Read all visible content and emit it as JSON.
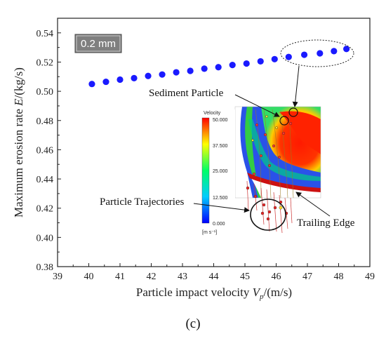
{
  "chart_data": {
    "type": "scatter",
    "xlabel_main": "Particle impact velocity ",
    "xlabel_var": "V",
    "xlabel_sub": "p",
    "xlabel_unit": "/(m/s)",
    "ylabel_main": "Maximum erosion rate ",
    "ylabel_var": "E",
    "ylabel_unit": "/(kg/s)",
    "xlim": [
      39,
      49
    ],
    "ylim": [
      0.38,
      0.55
    ],
    "x_ticks": [
      "39",
      "40",
      "41",
      "42",
      "43",
      "44",
      "45",
      "46",
      "47",
      "48",
      "49"
    ],
    "y_ticks": [
      "0.38",
      "0.40",
      "0.42",
      "0.44",
      "0.46",
      "0.48",
      "0.50",
      "0.52",
      "0.54"
    ],
    "point_color": "#1a1aff",
    "series": [
      {
        "x": [
          40.1,
          40.55,
          41.0,
          41.45,
          41.9,
          42.35,
          42.8,
          43.25,
          43.7,
          44.15,
          44.6,
          45.05,
          45.5,
          45.95,
          46.4,
          46.9,
          47.4,
          47.85,
          48.25
        ],
        "y": [
          0.505,
          0.5065,
          0.508,
          0.509,
          0.5105,
          0.5115,
          0.513,
          0.514,
          0.5155,
          0.5165,
          0.518,
          0.519,
          0.5205,
          0.522,
          0.5235,
          0.525,
          0.526,
          0.5275,
          0.529
        ]
      }
    ],
    "badge": "0.2 mm",
    "annotations": {
      "sediment_particle": "Sediment Particle",
      "particle_trajectories": "Particle Trajectories",
      "trailing_edge": "Trailing Edge"
    },
    "grid": false
  },
  "inset": {
    "title": "Velocity",
    "unit": "[m s⁻¹]",
    "colorbar_labels": [
      "50.000",
      "37.500",
      "25.000",
      "12.500",
      "0.000"
    ]
  },
  "panel_label": "(c)"
}
